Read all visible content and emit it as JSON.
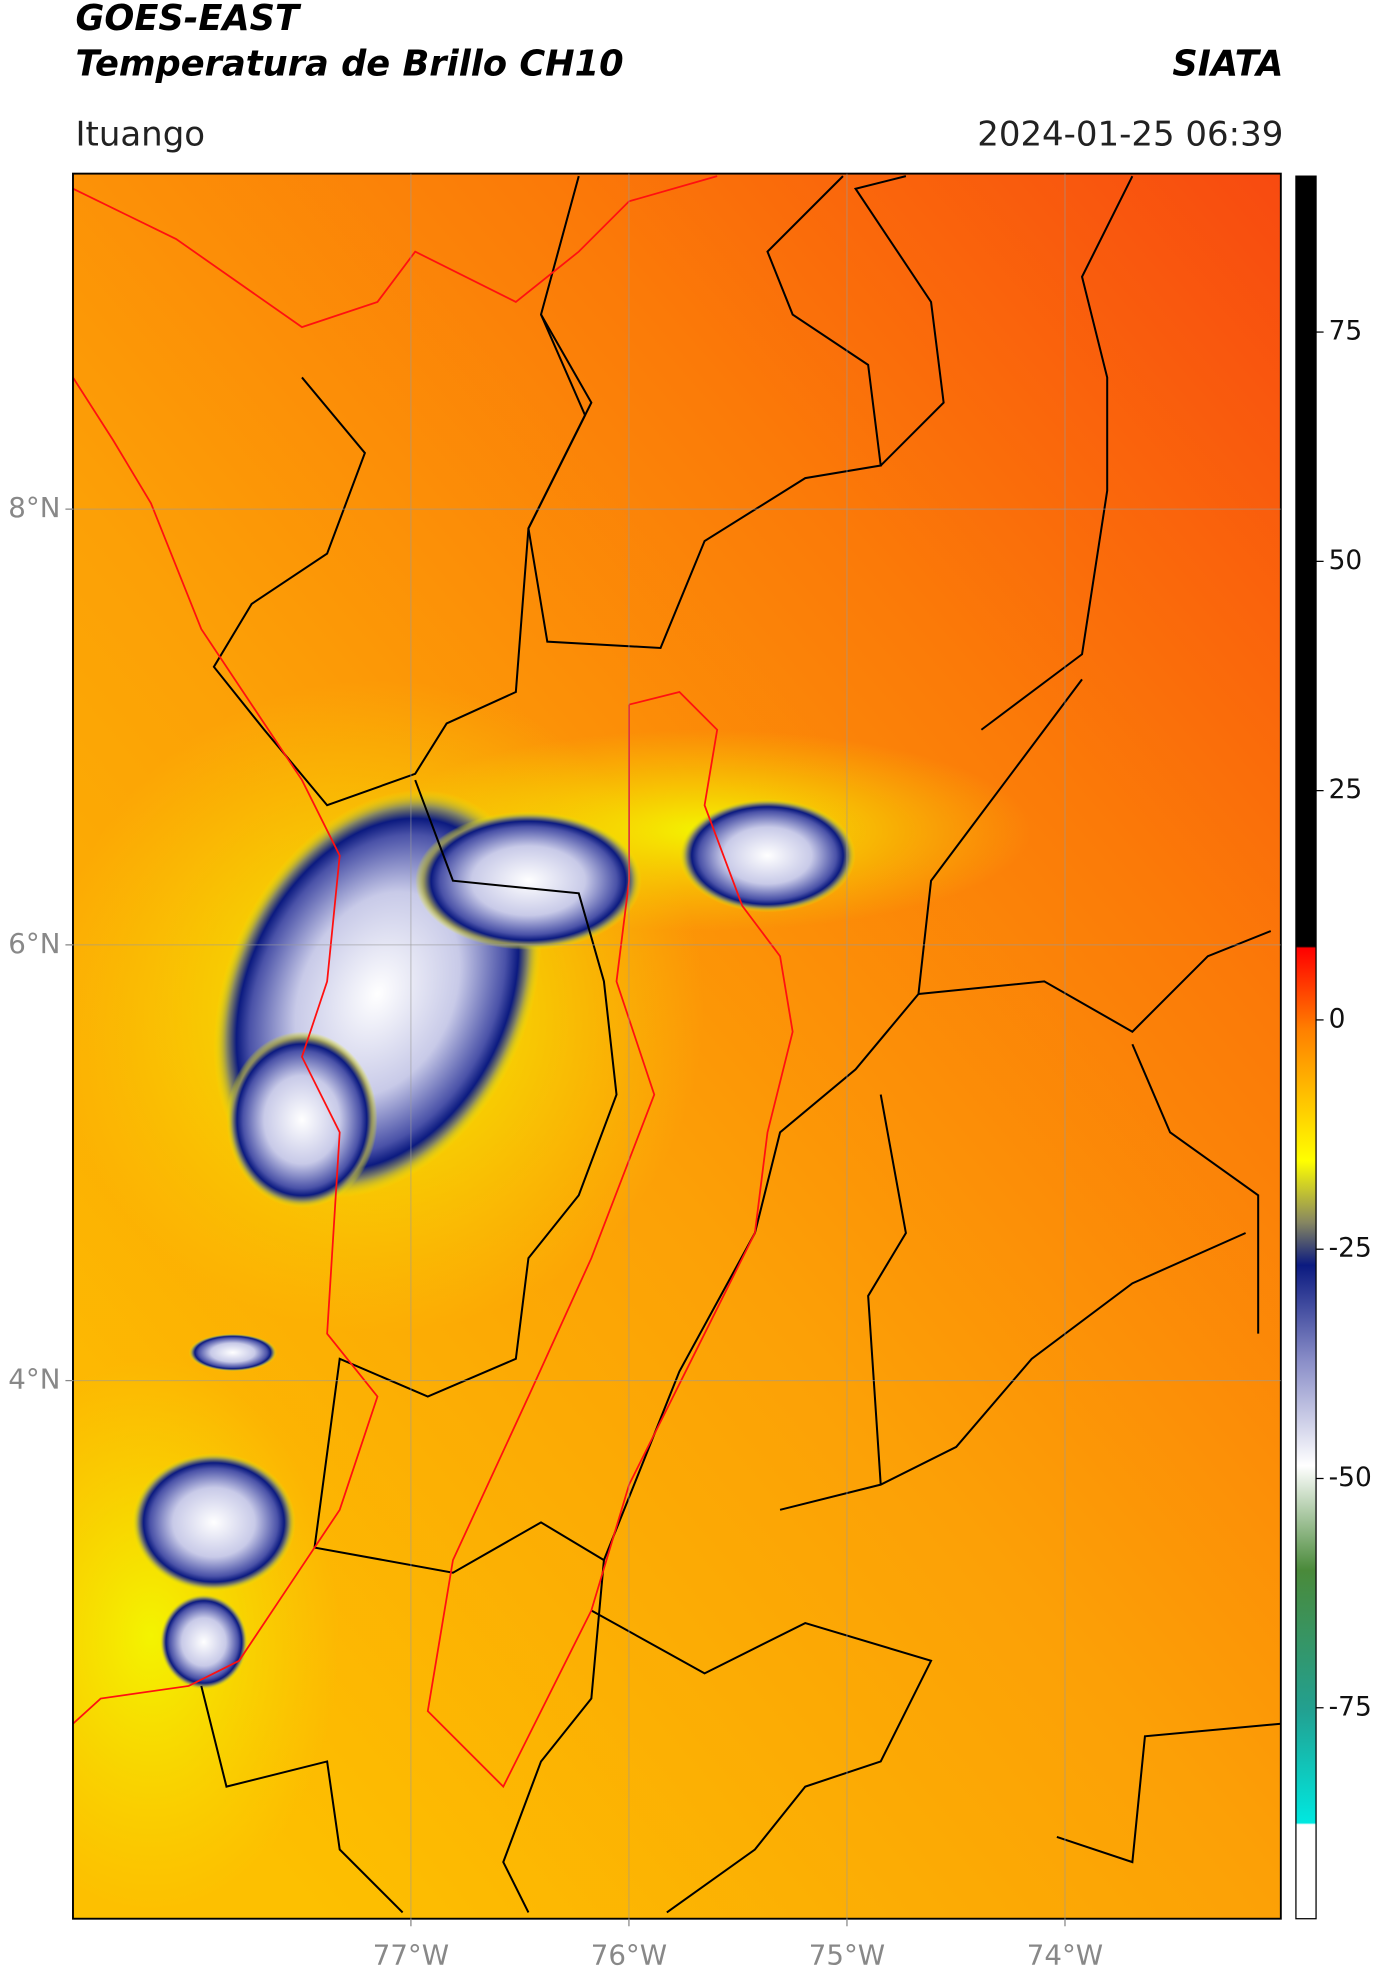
{
  "header": {
    "title": "GOES-EAST",
    "subtitle": "Temperatura de Brillo CH10",
    "brand": "SIATA",
    "location": "Ituango",
    "datetime": "2024-01-25 06:39"
  },
  "chart_data": {
    "type": "map",
    "xlim": [
      -78.55,
      -73.01
    ],
    "ylim": [
      1.53,
      9.54
    ],
    "xticks": [
      {
        "value": -77,
        "label": "77°W"
      },
      {
        "value": -76,
        "label": "76°W"
      },
      {
        "value": -75,
        "label": "75°W"
      },
      {
        "value": -74,
        "label": "74°W"
      }
    ],
    "yticks": [
      {
        "value": 4,
        "label": "4°N"
      },
      {
        "value": 6,
        "label": "6°N"
      },
      {
        "value": 8,
        "label": "8°N"
      }
    ],
    "grid": true,
    "colorbar": {
      "lim": [
        -98,
        92
      ],
      "ticks": [
        75,
        50,
        25,
        0,
        -25,
        -50,
        -75
      ]
    }
  }
}
